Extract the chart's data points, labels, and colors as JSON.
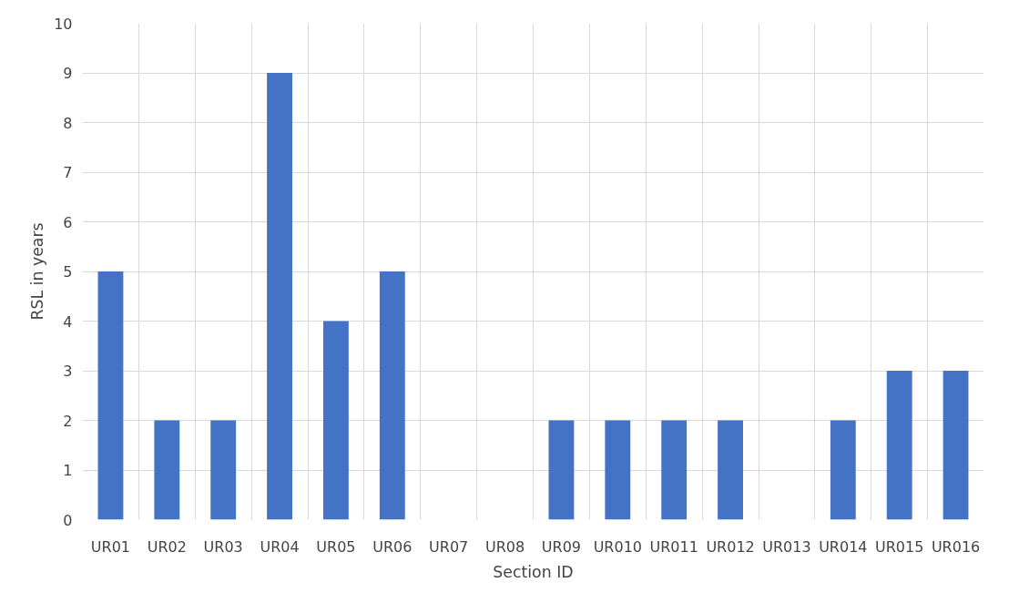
{
  "chart_data": {
    "type": "bar",
    "xlabel": "Section ID",
    "ylabel": "RSL in years",
    "categories": [
      "UR01",
      "UR02",
      "UR03",
      "UR04",
      "UR05",
      "UR06",
      "UR07",
      "UR08",
      "UR09",
      "UR010",
      "UR011",
      "UR012",
      "UR013",
      "UR014",
      "UR015",
      "UR016"
    ],
    "values": [
      5,
      2,
      2,
      9,
      4,
      5,
      0,
      0,
      2,
      2,
      2,
      2,
      0,
      2,
      3,
      3
    ],
    "color": "#4472c4",
    "ylim": [
      0,
      10
    ],
    "yticks": [
      0,
      1,
      2,
      3,
      4,
      5,
      6,
      7,
      8,
      9,
      10
    ],
    "grid": true
  }
}
